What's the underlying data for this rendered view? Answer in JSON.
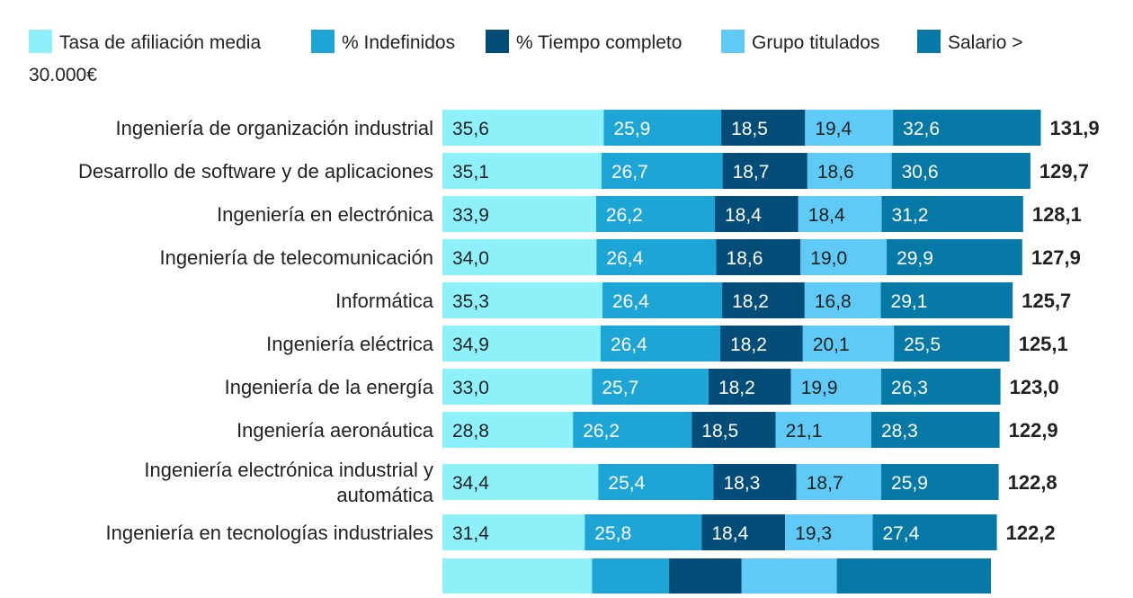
{
  "chart_data": {
    "type": "bar",
    "orientation": "horizontal",
    "stacked": true,
    "legend_position": "top-left",
    "series": [
      {
        "name": "Tasa de afiliación media",
        "color": "#8ef1fa",
        "values": [
          35.6,
          35.1,
          33.9,
          34.0,
          35.3,
          34.9,
          33.0,
          28.8,
          34.4,
          31.4
        ]
      },
      {
        "name": "% Indefinidos",
        "color": "#1da5d6",
        "values": [
          25.9,
          26.7,
          26.2,
          26.4,
          26.4,
          26.4,
          25.7,
          26.2,
          25.4,
          25.8
        ]
      },
      {
        "name": "% Tiempo completo",
        "color": "#054d79",
        "values": [
          18.5,
          18.7,
          18.4,
          18.6,
          18.2,
          18.2,
          18.2,
          18.5,
          18.3,
          18.4
        ]
      },
      {
        "name": "Grupo titulados",
        "color": "#5ecaf5",
        "values": [
          19.4,
          18.6,
          18.4,
          19.0,
          16.8,
          20.1,
          19.9,
          21.1,
          18.7,
          19.3
        ]
      },
      {
        "name": "Salario > 30.000€",
        "color": "#0679a6",
        "values": [
          32.6,
          30.6,
          31.2,
          29.9,
          29.1,
          25.5,
          26.3,
          28.3,
          25.9,
          27.4
        ]
      }
    ],
    "categories": [
      "Ingeniería de organización industrial",
      "Desarrollo de software y de aplicaciones",
      "Ingeniería en electrónica",
      "Ingeniería de telecomunicación",
      "Informática",
      "Ingeniería eléctrica",
      "Ingeniería de la energía",
      "Ingeniería aeronáutica",
      "Ingeniería electrónica industrial y automática",
      "Ingeniería en tecnologías industriales"
    ],
    "category_lines": [
      [
        "Ingeniería de organización industrial"
      ],
      [
        "Desarrollo de software y de aplicaciones"
      ],
      [
        "Ingeniería en electrónica"
      ],
      [
        "Ingeniería de telecomunicación"
      ],
      [
        "Informática"
      ],
      [
        "Ingeniería eléctrica"
      ],
      [
        "Ingeniería de la energía"
      ],
      [
        "Ingeniería aeronáutica"
      ],
      [
        "Ingeniería electrónica industrial y",
        "automática"
      ],
      [
        "Ingeniería en tecnologías industriales"
      ]
    ],
    "value_labels": [
      [
        "35,6",
        "35,1",
        "33,9",
        "34,0",
        "35,3",
        "34,9",
        "33,0",
        "28,8",
        "34,4",
        "31,4"
      ],
      [
        "25,9",
        "26,7",
        "26,2",
        "26,4",
        "26,4",
        "26,4",
        "25,7",
        "26,2",
        "25,4",
        "25,8"
      ],
      [
        "18,5",
        "18,7",
        "18,4",
        "18,6",
        "18,2",
        "18,2",
        "18,2",
        "18,5",
        "18,3",
        "18,4"
      ],
      [
        "19,4",
        "18,6",
        "18,4",
        "19,0",
        "16,8",
        "20,1",
        "19,9",
        "21,1",
        "18,7",
        "19,3"
      ],
      [
        "32,6",
        "30,6",
        "31,2",
        "29,9",
        "29,1",
        "25,5",
        "26,3",
        "28,3",
        "25,9",
        "27,4"
      ]
    ],
    "totals": [
      131.9,
      129.7,
      128.1,
      127.9,
      125.7,
      125.1,
      123.0,
      122.9,
      122.8,
      122.2
    ],
    "total_labels": [
      "131,9",
      "129,7",
      "128,1",
      "127,9",
      "125,7",
      "125,1",
      "123,0",
      "122,9",
      "122,8",
      "122,2"
    ],
    "partial_next_row": [
      33.0,
      17.0,
      16.0,
      21.0,
      34.0
    ],
    "xlim": [
      0,
      131.9
    ],
    "grid": false
  }
}
